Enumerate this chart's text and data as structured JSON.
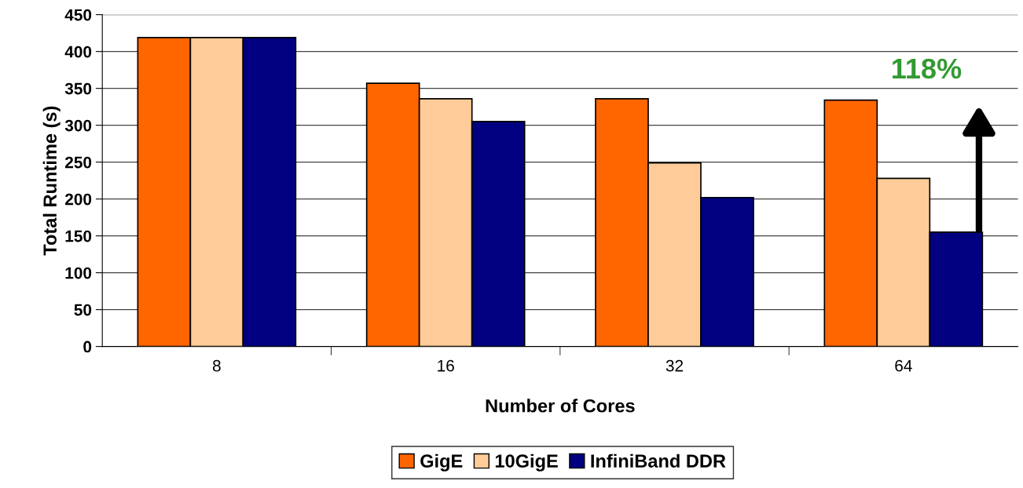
{
  "chart_data": {
    "type": "bar",
    "xlabel": "Number of Cores",
    "ylabel": "Total Runtime (s)",
    "categories": [
      "8",
      "16",
      "32",
      "64"
    ],
    "series": [
      {
        "name": "GigE",
        "color": "#ff6600",
        "values": [
          419,
          357,
          336,
          334
        ]
      },
      {
        "name": "10GigE",
        "color": "#ffcc99",
        "values": [
          419,
          336,
          249,
          228
        ]
      },
      {
        "name": "InfiniBand DDR",
        "color": "#000080",
        "values": [
          419,
          305,
          202,
          155
        ]
      }
    ],
    "ylim": [
      0,
      450
    ],
    "yticks": [
      0,
      50,
      100,
      150,
      200,
      250,
      300,
      350,
      400,
      450
    ],
    "grid": "y",
    "legend": "bottom",
    "annotations": [
      "118%"
    ]
  }
}
